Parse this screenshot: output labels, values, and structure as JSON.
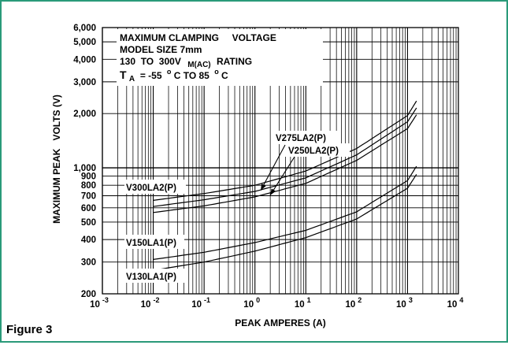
{
  "figure_label": "Figure 3",
  "colors": {
    "frame": "#2a9a79",
    "ink": "#000000",
    "background": "#ffffff"
  },
  "chart_data": {
    "type": "line",
    "x_scale": "log",
    "y_scale": "log",
    "xlabel": "PEAK AMPERES (A)",
    "ylabel": "MAXIMUM PEAK   VOLTS (V)",
    "xlim": [
      0.001,
      10000
    ],
    "ylim": [
      200,
      6000
    ],
    "grid": true,
    "x_ticks": [
      {
        "value": 0.001,
        "base": "10",
        "exp": "-3"
      },
      {
        "value": 0.01,
        "base": "10",
        "exp": "-2"
      },
      {
        "value": 0.1,
        "base": "10",
        "exp": "-1"
      },
      {
        "value": 1,
        "base": "10",
        "exp": "0"
      },
      {
        "value": 10,
        "base": "10",
        "exp": "1"
      },
      {
        "value": 100,
        "base": "10",
        "exp": "2"
      },
      {
        "value": 1000,
        "base": "10",
        "exp": "3"
      },
      {
        "value": 10000,
        "base": "10",
        "exp": "4"
      }
    ],
    "y_ticks": [
      {
        "value": 200,
        "label": "200"
      },
      {
        "value": 300,
        "label": "300"
      },
      {
        "value": 400,
        "label": "400"
      },
      {
        "value": 500,
        "label": "500"
      },
      {
        "value": 600,
        "label": "600"
      },
      {
        "value": 700,
        "label": "700"
      },
      {
        "value": 800,
        "label": "800"
      },
      {
        "value": 900,
        "label": "900"
      },
      {
        "value": 1000,
        "label": "1,000"
      },
      {
        "value": 2000,
        "label": "2,000"
      },
      {
        "value": 3000,
        "label": "3,000"
      },
      {
        "value": 4000,
        "label": "4,000"
      },
      {
        "value": 5000,
        "label": "5,000"
      },
      {
        "value": 6000,
        "label": "6,000"
      }
    ],
    "title_box": {
      "line1": "MAXIMUM CLAMPING     VOLTAGE",
      "line2": "MODEL SIZE 7mm",
      "line3_a": "130  TO  300V",
      "line3_sub": "M(AC)",
      "line3_b": "RATING",
      "line4_t": "T",
      "line4_sub": "A",
      "line4_a": " = -55",
      "line4_o1": "o",
      "line4_b": "C TO 85",
      "line4_o2": "o",
      "line4_c": "C"
    },
    "series": [
      {
        "name": "V300LA2(P)",
        "x": [
          0.01,
          0.1,
          1,
          10,
          100,
          1000,
          1500
        ],
        "y": [
          660,
          720,
          800,
          960,
          1280,
          1950,
          2350
        ]
      },
      {
        "name": "V275LA2(P)",
        "x": [
          0.01,
          0.1,
          1,
          10,
          100,
          1000,
          1500
        ],
        "y": [
          610,
          665,
          740,
          880,
          1180,
          1800,
          2150
        ]
      },
      {
        "name": "V250LA2(P)",
        "x": [
          0.01,
          0.1,
          1,
          10,
          100,
          1000,
          1500
        ],
        "y": [
          565,
          615,
          690,
          820,
          1100,
          1650,
          1970
        ]
      },
      {
        "name": "V150LA1(P)",
        "x": [
          0.01,
          0.1,
          1,
          10,
          100,
          1000,
          1500
        ],
        "y": [
          310,
          340,
          385,
          450,
          570,
          850,
          1020
        ]
      },
      {
        "name": "V130LA1(P)",
        "x": [
          0.01,
          0.1,
          1,
          10,
          100,
          1000,
          1500
        ],
        "y": [
          270,
          300,
          345,
          410,
          520,
          770,
          920
        ]
      }
    ],
    "annotations": [
      {
        "text": "V275LA2(P)",
        "arrow_to": {
          "x": 1.3,
          "y": 750
        }
      },
      {
        "text": "V250LA2(P)",
        "arrow_to": {
          "x": 2.0,
          "y": 705
        }
      },
      {
        "text": "V300LA2(P)"
      },
      {
        "text": "V150LA1(P)"
      },
      {
        "text": "V130LA1(P)"
      }
    ]
  }
}
